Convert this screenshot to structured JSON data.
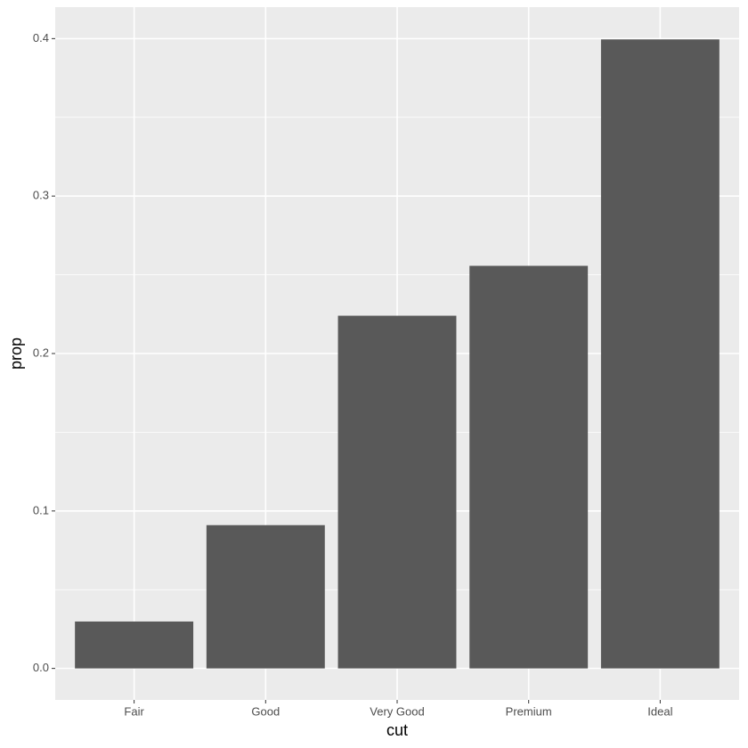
{
  "chart_data": {
    "type": "bar",
    "x_label": "cut",
    "y_label": "prop",
    "categories": [
      "Fair",
      "Good",
      "Very Good",
      "Premium",
      "Ideal"
    ],
    "values": [
      0.0298,
      0.091,
      0.224,
      0.2557,
      0.3995
    ],
    "color": "#595959",
    "ylim": [
      -0.02,
      0.42
    ],
    "yticks": [
      {
        "value": 0,
        "label": "0.0"
      },
      0.1,
      0.2,
      0.3,
      0.4
    ],
    "minor_yticks": [
      0.05,
      0.15,
      0.25,
      0.35
    ],
    "grid": true
  }
}
